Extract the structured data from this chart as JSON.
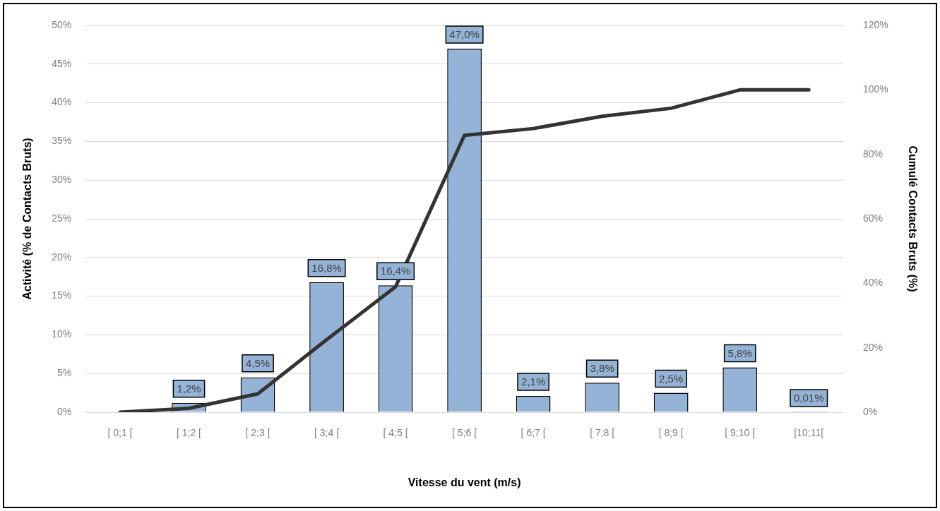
{
  "chart_data": {
    "type": "bar",
    "xlabel": "Vitesse du vent (m/s)",
    "ylabel": "Activité (% de Contacts Bruts)",
    "y2label": "Cumulé Contacts Bruts (%)",
    "categories": [
      "[ 0;1 [",
      "[ 1;2 [",
      "[ 2;3 [",
      "[ 3;4 [",
      "[ 4;5 [",
      "[ 5;6 [",
      "[ 6;7 [",
      "[ 7;8 [",
      "[ 8;9 [",
      "[ 9;10 [",
      "[10;11["
    ],
    "series": [
      {
        "color": "#95b3d7",
        "values": [
          0,
          1.2,
          4.5,
          16.8,
          16.4,
          47.0,
          2.1,
          3.8,
          2.5,
          5.8,
          0.01
        ],
        "value_labels": [
          null,
          "1,2%",
          "4,5%",
          "16,8%",
          "16,4%",
          "47,0%",
          "2,1%",
          "3,8%",
          "2,5%",
          "5,8%",
          "0,01%"
        ]
      },
      {
        "type": "line",
        "axis": "y2",
        "color": "#333333",
        "values": [
          0,
          1.2,
          5.7,
          22.5,
          38.9,
          85.9,
          88.0,
          91.8,
          94.3,
          100,
          100
        ]
      }
    ],
    "ylim": [
      0,
      50
    ],
    "yticks": [
      {
        "value": 0,
        "label": "0%"
      },
      {
        "value": 5,
        "label": "5%"
      },
      {
        "value": 10,
        "label": "10%"
      },
      {
        "value": 15,
        "label": "15%"
      },
      {
        "value": 20,
        "label": "20%"
      },
      {
        "value": 25,
        "label": "25%"
      },
      {
        "value": 30,
        "label": "30%"
      },
      {
        "value": 35,
        "label": "35%"
      },
      {
        "value": 40,
        "label": "40%"
      },
      {
        "value": 45,
        "label": "45%"
      },
      {
        "value": 50,
        "label": "50%"
      }
    ],
    "y2lim": [
      0,
      120
    ],
    "y2ticks": [
      {
        "value": 0,
        "label": "0%"
      },
      {
        "value": 20,
        "label": "20%"
      },
      {
        "value": 40,
        "label": "40%"
      },
      {
        "value": 60,
        "label": "60%"
      },
      {
        "value": 80,
        "label": "80%"
      },
      {
        "value": 100,
        "label": "100%"
      },
      {
        "value": 120,
        "label": "120%"
      }
    ],
    "grid": "y",
    "legend": false,
    "marker": "none",
    "line_style": "solid"
  }
}
